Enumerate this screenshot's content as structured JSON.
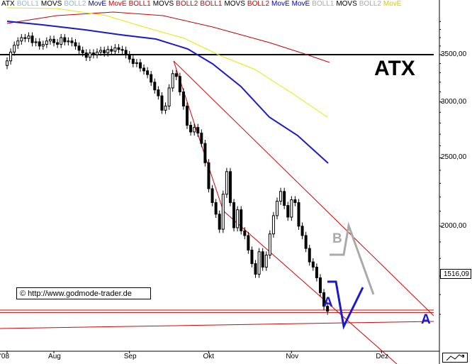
{
  "legend": [
    {
      "text": "ATX",
      "color": "#000000"
    },
    {
      "text": "BOLL1",
      "color": "#87b9e8"
    },
    {
      "text": "MOVS",
      "color": "#000000"
    },
    {
      "text": "BOLL2",
      "color": "#87b9e8"
    },
    {
      "text": "MovE",
      "color": "#0000cc"
    },
    {
      "text": "MovE",
      "color": "#cc0000"
    },
    {
      "text": "BOLL1",
      "color": "#cc0000"
    },
    {
      "text": "MOVS",
      "color": "#000000"
    },
    {
      "text": "BOLL2",
      "color": "#cc0000"
    },
    {
      "text": "BOLL1",
      "color": "#cc0000"
    },
    {
      "text": "MOVS",
      "color": "#000000"
    },
    {
      "text": "BOLL2",
      "color": "#cc0000"
    },
    {
      "text": "MovE",
      "color": "#0000cc"
    },
    {
      "text": "MovE",
      "color": "#0000cc"
    },
    {
      "text": "BOLL1",
      "color": "#aaaaaa"
    },
    {
      "text": "MOVS",
      "color": "#000000"
    },
    {
      "text": "BOLL2",
      "color": "#aaaaaa"
    },
    {
      "text": "MovE",
      "color": "#cccc00"
    }
  ],
  "title": "ATX",
  "copyright": "© http://www.godmode-trader.de",
  "price_label": "1516,09",
  "chart_data": {
    "type": "candlestick",
    "title": "ATX",
    "y_scale": "log",
    "ylim": [
      1330,
      4050
    ],
    "y_ticks": [
      "3500,00",
      "3000,00",
      "2500,00",
      "2000,00"
    ],
    "y_tick_values": [
      3500,
      3000,
      2500,
      2000
    ],
    "x_ticks": [
      "'08",
      "Aug",
      "Sep",
      "Okt",
      "Nov",
      "Dez"
    ],
    "x_tick_index": [
      0,
      13,
      34,
      56,
      79,
      104
    ],
    "closes": [
      3430,
      3530,
      3610,
      3660,
      3700,
      3690,
      3720,
      3640,
      3650,
      3600,
      3620,
      3660,
      3680,
      3640,
      3620,
      3700,
      3650,
      3660,
      3640,
      3600,
      3550,
      3520,
      3470,
      3520,
      3500,
      3530,
      3550,
      3520,
      3560,
      3540,
      3580,
      3560,
      3550,
      3500,
      3450,
      3400,
      3410,
      3350,
      3320,
      3280,
      3200,
      3120,
      3060,
      2920,
      2960,
      3140,
      3290,
      3260,
      3100,
      2960,
      2780,
      2720,
      2760,
      2710,
      2620,
      2460,
      2260,
      2160,
      2080,
      1980,
      2220,
      2390,
      2160,
      1990,
      2110,
      1970,
      1940,
      1850,
      1770,
      1710,
      1840,
      1750,
      1820,
      1950,
      2070,
      2170,
      2240,
      2140,
      2060,
      2180,
      2160,
      2000,
      1940,
      1860,
      1780,
      1750,
      1690,
      1610,
      1540,
      1516
    ],
    "annotations": [
      {
        "label": "A",
        "color": "#1a1acc"
      },
      {
        "label": "B",
        "color": "#aaaaaa"
      },
      {
        "label": "A",
        "color": "#1a1acc"
      }
    ],
    "horizontal_levels": [
      3500,
      1520
    ],
    "colors": {
      "candles": "#000000",
      "ma_blue": "#1a1acc",
      "ma_yellow": "#e8e800",
      "ma_red": "#cc0000",
      "channel": "#dd0000",
      "wave_blue": "#1a1acc",
      "wave_gray": "#aaaaaa"
    }
  }
}
